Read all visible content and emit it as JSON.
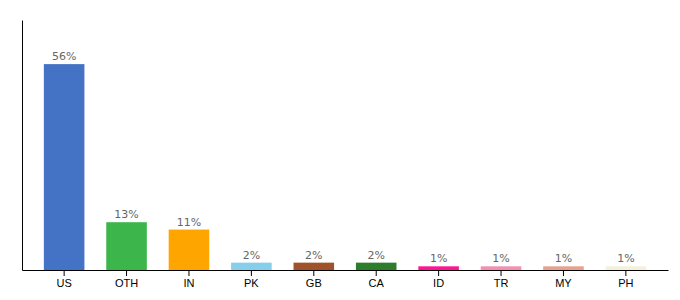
{
  "chart_data": {
    "type": "bar",
    "categories": [
      "US",
      "OTH",
      "IN",
      "PK",
      "GB",
      "CA",
      "ID",
      "TR",
      "MY",
      "PH"
    ],
    "values": [
      56,
      13,
      11,
      2,
      2,
      2,
      1,
      1,
      1,
      1
    ],
    "value_labels": [
      "56%",
      "13%",
      "11%",
      "2%",
      "2%",
      "2%",
      "1%",
      "1%",
      "1%",
      "1%"
    ],
    "colors": [
      "#4472c4",
      "#3cb54a",
      "#ffa500",
      "#87ceeb",
      "#a0522d",
      "#2d7d2d",
      "#ff1493",
      "#f48fb1",
      "#e8a090",
      "#f5f0dc"
    ],
    "ylim": [
      0,
      68
    ],
    "data_labels": true,
    "tick_labels": "x"
  }
}
